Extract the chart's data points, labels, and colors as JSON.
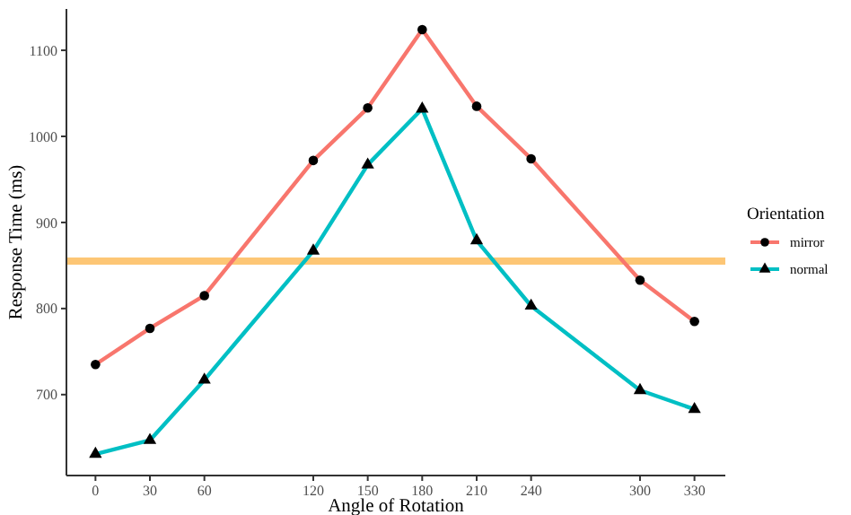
{
  "chart_data": {
    "type": "line",
    "xlabel": "Angle of Rotation",
    "ylabel": "Response Time (ms)",
    "legend_title": "Orientation",
    "legend": "right",
    "grid": false,
    "x": [
      0,
      30,
      60,
      120,
      150,
      180,
      210,
      240,
      300,
      330
    ],
    "xlim": [
      -16,
      347
    ],
    "xticks": [
      0,
      30,
      60,
      120,
      150,
      180,
      210,
      240,
      300,
      330
    ],
    "ylim": [
      606,
      1148
    ],
    "yticks": [
      700,
      800,
      900,
      1000,
      1100
    ],
    "series": [
      {
        "name": "mirror",
        "color": "#f8766d",
        "marker": "circle",
        "values": [
          735,
          777,
          815,
          972,
          1033,
          1124,
          1035,
          974,
          833,
          785
        ]
      },
      {
        "name": "normal",
        "color": "#00bfc4",
        "marker": "triangle",
        "values": [
          631,
          647,
          717,
          867,
          967,
          1032,
          879,
          803,
          705,
          683
        ]
      }
    ],
    "ref_lines": [
      {
        "axis": "y",
        "value": 855,
        "color": "#fdc675"
      }
    ]
  }
}
